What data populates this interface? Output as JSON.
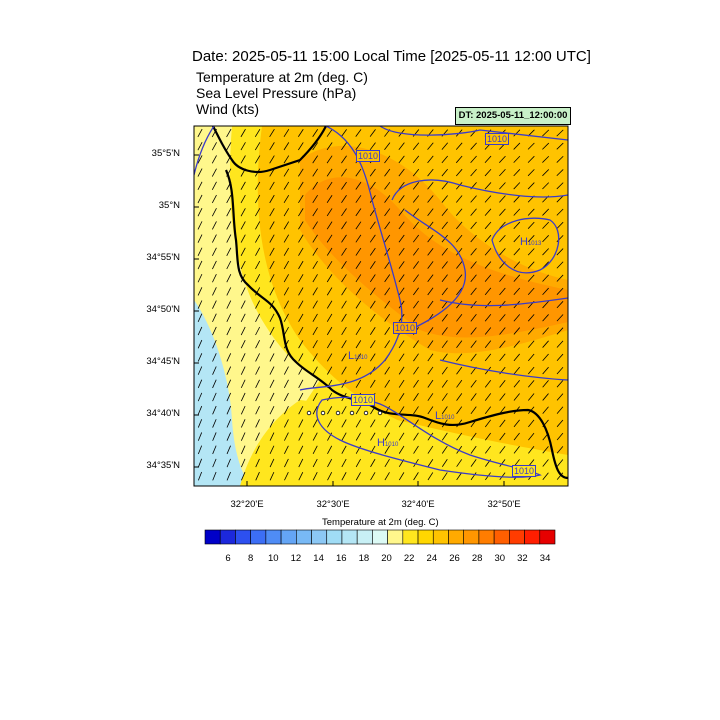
{
  "title": "Date: 2025-05-11  15:00 Local Time [2025-05-11  12:00 UTC]",
  "fields": [
    "Temperature at 2m   (deg. C)",
    "Sea Level Pressure   (hPa)",
    "Wind   (kts)"
  ],
  "dt_label": "DT: 2025-05-11_12:00:00",
  "lat_labels": [
    "35°5'N",
    "35°N",
    "34°55'N",
    "34°50'N",
    "34°45'N",
    "34°40'N",
    "34°35'N"
  ],
  "lon_labels": [
    "32°20'E",
    "32°30'E",
    "32°40'E",
    "32°50'E"
  ],
  "isobar_labels": [
    "1010",
    "1010",
    "1010",
    "1010",
    "1010"
  ],
  "pressure_centers": [
    {
      "symbol": "H",
      "value": "1013"
    },
    {
      "symbol": "L",
      "value": "1010"
    },
    {
      "symbol": "L",
      "value": "1010"
    },
    {
      "symbol": "H",
      "value": "1010"
    }
  ],
  "colorbar": {
    "title": "Temperature at 2m  (deg. C)",
    "ticks": [
      "6",
      "8",
      "10",
      "12",
      "14",
      "16",
      "18",
      "20",
      "22",
      "24",
      "26",
      "28",
      "30",
      "32",
      "34"
    ],
    "colors": [
      "#0000c8",
      "#1c28dc",
      "#2d50f0",
      "#3c6ef5",
      "#4f8cf5",
      "#64a5f5",
      "#78b9f5",
      "#8cc8f5",
      "#a0dcf5",
      "#b4e6f5",
      "#c8f0f5",
      "#dcfaf5",
      "#fff78c",
      "#ffe61e",
      "#ffd700",
      "#ffc300",
      "#ffaa00",
      "#ff9600",
      "#ff7d00",
      "#ff5f00",
      "#ff3c00",
      "#ff1e00",
      "#e60000"
    ]
  }
}
